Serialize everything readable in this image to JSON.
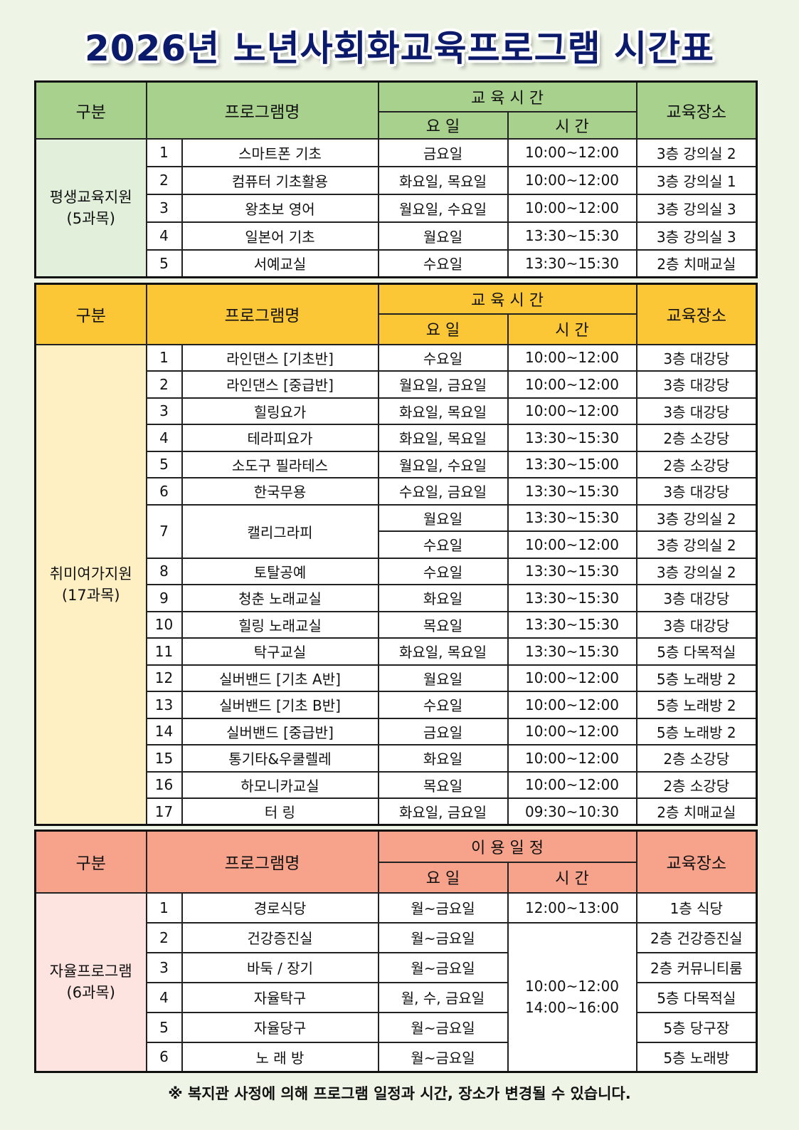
{
  "title": "2026년 노년사회화교육프로그램 시간표",
  "footnote": "※ 복지관 사정에 의해 프로그램 일정과 시간, 장소가 변경될 수 있습니다.",
  "colors": {
    "background": "#eef5e6",
    "title": "#0b1a6b",
    "section1_header": "#a9d18e",
    "section1_category": "#e2efda",
    "section2_header": "#fcc737",
    "section2_category": "#fff0c4",
    "section3_header": "#f7a38b",
    "section3_category": "#fde4e0"
  },
  "sections": [
    {
      "headers": {
        "category": "구분",
        "program": "프로그램명",
        "group": "교 육 시 간",
        "day": "요  일",
        "time": "시  간",
        "place": "교육장소"
      },
      "category": [
        "평생교육지원",
        "(5과목)"
      ],
      "rows": [
        {
          "no": "1",
          "name": "스마트폰 기초",
          "day": "금요일",
          "time": "10:00~12:00",
          "place": "3층 강의실 2"
        },
        {
          "no": "2",
          "name": "컴퓨터 기초활용",
          "day": "화요일, 목요일",
          "time": "10:00~12:00",
          "place": "3층 강의실 1"
        },
        {
          "no": "3",
          "name": "왕초보 영어",
          "day": "월요일, 수요일",
          "time": "10:00~12:00",
          "place": "3층 강의실 3"
        },
        {
          "no": "4",
          "name": "일본어 기초",
          "day": "월요일",
          "time": "13:30~15:30",
          "place": "3층 강의실 3"
        },
        {
          "no": "5",
          "name": "서예교실",
          "day": "수요일",
          "time": "13:30~15:30",
          "place": "2층 치매교실"
        }
      ]
    },
    {
      "headers": {
        "category": "구분",
        "program": "프로그램명",
        "group": "교 육 시 간",
        "day": "요  일",
        "time": "시  간",
        "place": "교육장소"
      },
      "category": [
        "취미여가지원",
        "(17과목)"
      ],
      "rows": [
        {
          "no": "1",
          "name": "라인댄스 [기초반]",
          "day": "수요일",
          "time": "10:00~12:00",
          "place": "3층 대강당"
        },
        {
          "no": "2",
          "name": "라인댄스 [중급반]",
          "day": "월요일, 금요일",
          "time": "10:00~12:00",
          "place": "3층 대강당"
        },
        {
          "no": "3",
          "name": "힐링요가",
          "day": "화요일, 목요일",
          "time": "10:00~12:00",
          "place": "3층 대강당"
        },
        {
          "no": "4",
          "name": "테라피요가",
          "day": "화요일, 목요일",
          "time": "13:30~15:30",
          "place": "2층 소강당"
        },
        {
          "no": "5",
          "name": "소도구 필라테스",
          "day": "월요일, 수요일",
          "time": "13:30~15:00",
          "place": "2층 소강당"
        },
        {
          "no": "6",
          "name": "한국무용",
          "day": "수요일, 금요일",
          "time": "13:30~15:30",
          "place": "3층 대강당"
        },
        {
          "no": "7",
          "name": "캘리그라피",
          "sessions": [
            {
              "day": "월요일",
              "time": "13:30~15:30",
              "place": "3층 강의실 2"
            },
            {
              "day": "수요일",
              "time": "10:00~12:00",
              "place": "3층 강의실 2"
            }
          ]
        },
        {
          "no": "8",
          "name": "토탈공예",
          "day": "수요일",
          "time": "13:30~15:30",
          "place": "3층 강의실 2"
        },
        {
          "no": "9",
          "name": "청춘 노래교실",
          "day": "화요일",
          "time": "13:30~15:30",
          "place": "3층 대강당"
        },
        {
          "no": "10",
          "name": "힐링 노래교실",
          "day": "목요일",
          "time": "13:30~15:30",
          "place": "3층 대강당"
        },
        {
          "no": "11",
          "name": "탁구교실",
          "day": "화요일, 목요일",
          "time": "13:30~15:30",
          "place": "5층 다목적실"
        },
        {
          "no": "12",
          "name": "실버밴드 [기초 A반]",
          "day": "월요일",
          "time": "10:00~12:00",
          "place": "5층 노래방 2"
        },
        {
          "no": "13",
          "name": "실버밴드 [기초 B반]",
          "day": "수요일",
          "time": "10:00~12:00",
          "place": "5층 노래방 2"
        },
        {
          "no": "14",
          "name": "실버밴드 [중급반]",
          "day": "금요일",
          "time": "10:00~12:00",
          "place": "5층 노래방 2"
        },
        {
          "no": "15",
          "name": "통기타&우쿨렐레",
          "day": "화요일",
          "time": "10:00~12:00",
          "place": "2층 소강당"
        },
        {
          "no": "16",
          "name": "하모니카교실",
          "day": "목요일",
          "time": "10:00~12:00",
          "place": "2층 소강당"
        },
        {
          "no": "17",
          "name": "터       링",
          "day": "화요일, 금요일",
          "time": "09:30~10:30",
          "place": "2층 치매교실"
        }
      ]
    },
    {
      "headers": {
        "category": "구분",
        "program": "프로그램명",
        "group": "이 용 일 정",
        "day": "요  일",
        "time": "시  간",
        "place": "교육장소"
      },
      "category": [
        "자율프로그램",
        "(6과목)"
      ],
      "shared_time": [
        "10:00~12:00",
        "14:00~16:00"
      ],
      "rows": [
        {
          "no": "1",
          "name": "경로식당",
          "day": "월~금요일",
          "time": "12:00~13:00",
          "place": "1층 식당"
        },
        {
          "no": "2",
          "name": "건강증진실",
          "day": "월~금요일",
          "place": "2층 건강증진실"
        },
        {
          "no": "3",
          "name": "바둑 / 장기",
          "day": "월~금요일",
          "place": "2층 커뮤니티룸"
        },
        {
          "no": "4",
          "name": "자율탁구",
          "day": "월, 수, 금요일",
          "place": "5층 다목적실"
        },
        {
          "no": "5",
          "name": "자율당구",
          "day": "월~금요일",
          "place": "5층 당구장"
        },
        {
          "no": "6",
          "name": "노 래 방",
          "day": "월~금요일",
          "place": "5층 노래방"
        }
      ]
    }
  ]
}
